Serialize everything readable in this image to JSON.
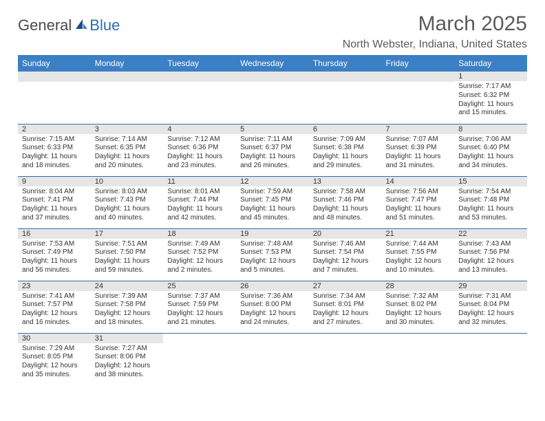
{
  "header": {
    "logo_dark": "General",
    "logo_blue": "Blue",
    "month_title": "March 2025",
    "location": "North Webster, Indiana, United States"
  },
  "style": {
    "header_bg": "#3b7fc4",
    "header_text": "#ffffff",
    "daynum_bg": "#e6e6e6",
    "border_color": "#2a6fb0",
    "text_color": "#333333",
    "title_color": "#5a5a5a",
    "body_font_size": 10,
    "daynum_font_size": 11,
    "header_font_size": 12,
    "title_font_size": 30,
    "location_font_size": 16
  },
  "columns": [
    "Sunday",
    "Monday",
    "Tuesday",
    "Wednesday",
    "Thursday",
    "Friday",
    "Saturday"
  ],
  "weeks": [
    [
      null,
      null,
      null,
      null,
      null,
      null,
      {
        "n": "1",
        "sr": "7:17 AM",
        "ss": "6:32 PM",
        "dl": "11 hours and 15 minutes."
      }
    ],
    [
      {
        "n": "2",
        "sr": "7:15 AM",
        "ss": "6:33 PM",
        "dl": "11 hours and 18 minutes."
      },
      {
        "n": "3",
        "sr": "7:14 AM",
        "ss": "6:35 PM",
        "dl": "11 hours and 20 minutes."
      },
      {
        "n": "4",
        "sr": "7:12 AM",
        "ss": "6:36 PM",
        "dl": "11 hours and 23 minutes."
      },
      {
        "n": "5",
        "sr": "7:11 AM",
        "ss": "6:37 PM",
        "dl": "11 hours and 26 minutes."
      },
      {
        "n": "6",
        "sr": "7:09 AM",
        "ss": "6:38 PM",
        "dl": "11 hours and 29 minutes."
      },
      {
        "n": "7",
        "sr": "7:07 AM",
        "ss": "6:39 PM",
        "dl": "11 hours and 31 minutes."
      },
      {
        "n": "8",
        "sr": "7:06 AM",
        "ss": "6:40 PM",
        "dl": "11 hours and 34 minutes."
      }
    ],
    [
      {
        "n": "9",
        "sr": "8:04 AM",
        "ss": "7:41 PM",
        "dl": "11 hours and 37 minutes."
      },
      {
        "n": "10",
        "sr": "8:03 AM",
        "ss": "7:43 PM",
        "dl": "11 hours and 40 minutes."
      },
      {
        "n": "11",
        "sr": "8:01 AM",
        "ss": "7:44 PM",
        "dl": "11 hours and 42 minutes."
      },
      {
        "n": "12",
        "sr": "7:59 AM",
        "ss": "7:45 PM",
        "dl": "11 hours and 45 minutes."
      },
      {
        "n": "13",
        "sr": "7:58 AM",
        "ss": "7:46 PM",
        "dl": "11 hours and 48 minutes."
      },
      {
        "n": "14",
        "sr": "7:56 AM",
        "ss": "7:47 PM",
        "dl": "11 hours and 51 minutes."
      },
      {
        "n": "15",
        "sr": "7:54 AM",
        "ss": "7:48 PM",
        "dl": "11 hours and 53 minutes."
      }
    ],
    [
      {
        "n": "16",
        "sr": "7:53 AM",
        "ss": "7:49 PM",
        "dl": "11 hours and 56 minutes."
      },
      {
        "n": "17",
        "sr": "7:51 AM",
        "ss": "7:50 PM",
        "dl": "11 hours and 59 minutes."
      },
      {
        "n": "18",
        "sr": "7:49 AM",
        "ss": "7:52 PM",
        "dl": "12 hours and 2 minutes."
      },
      {
        "n": "19",
        "sr": "7:48 AM",
        "ss": "7:53 PM",
        "dl": "12 hours and 5 minutes."
      },
      {
        "n": "20",
        "sr": "7:46 AM",
        "ss": "7:54 PM",
        "dl": "12 hours and 7 minutes."
      },
      {
        "n": "21",
        "sr": "7:44 AM",
        "ss": "7:55 PM",
        "dl": "12 hours and 10 minutes."
      },
      {
        "n": "22",
        "sr": "7:43 AM",
        "ss": "7:56 PM",
        "dl": "12 hours and 13 minutes."
      }
    ],
    [
      {
        "n": "23",
        "sr": "7:41 AM",
        "ss": "7:57 PM",
        "dl": "12 hours and 16 minutes."
      },
      {
        "n": "24",
        "sr": "7:39 AM",
        "ss": "7:58 PM",
        "dl": "12 hours and 18 minutes."
      },
      {
        "n": "25",
        "sr": "7:37 AM",
        "ss": "7:59 PM",
        "dl": "12 hours and 21 minutes."
      },
      {
        "n": "26",
        "sr": "7:36 AM",
        "ss": "8:00 PM",
        "dl": "12 hours and 24 minutes."
      },
      {
        "n": "27",
        "sr": "7:34 AM",
        "ss": "8:01 PM",
        "dl": "12 hours and 27 minutes."
      },
      {
        "n": "28",
        "sr": "7:32 AM",
        "ss": "8:02 PM",
        "dl": "12 hours and 30 minutes."
      },
      {
        "n": "29",
        "sr": "7:31 AM",
        "ss": "8:04 PM",
        "dl": "12 hours and 32 minutes."
      }
    ],
    [
      {
        "n": "30",
        "sr": "7:29 AM",
        "ss": "8:05 PM",
        "dl": "12 hours and 35 minutes."
      },
      {
        "n": "31",
        "sr": "7:27 AM",
        "ss": "8:06 PM",
        "dl": "12 hours and 38 minutes."
      },
      null,
      null,
      null,
      null,
      null
    ]
  ],
  "labels": {
    "sunrise": "Sunrise:",
    "sunset": "Sunset:",
    "daylight": "Daylight:"
  }
}
